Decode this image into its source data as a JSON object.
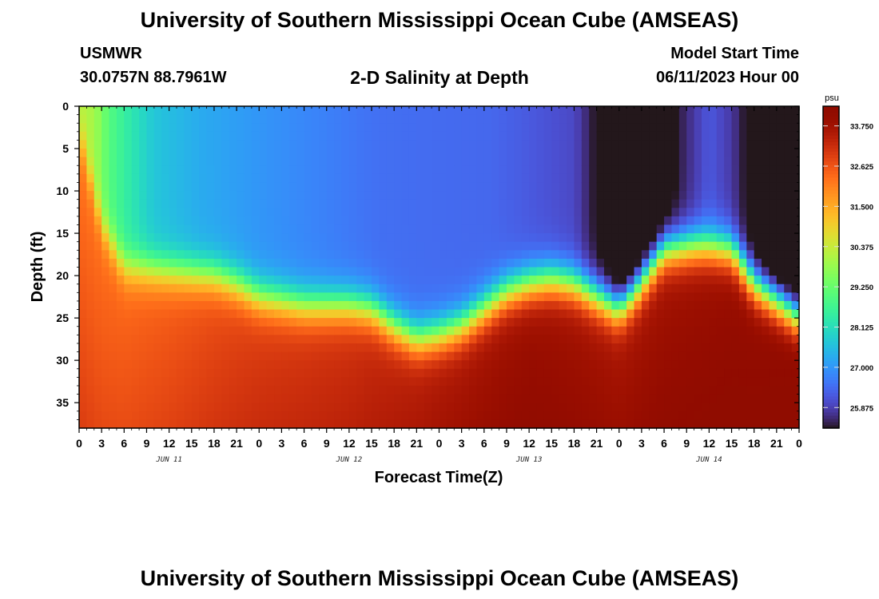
{
  "header": {
    "title": "University of Southern Mississippi Ocean Cube (AMSEAS)",
    "station": "USMWR",
    "coordinates": "30.0757N  88.7961W",
    "subtitle": "2-D Salinity at Depth",
    "start_label": "Model Start Time",
    "start_value": "06/11/2023 Hour 00"
  },
  "footer": {
    "title": "University of Southern Mississippi Ocean Cube (AMSEAS)"
  },
  "chart_data": {
    "type": "heatmap",
    "title": "2-D Salinity at Depth",
    "xlabel": "Forecast Time(Z)",
    "ylabel": "Depth (ft)",
    "x_tick_labels": [
      "0",
      "3",
      "6",
      "9",
      "12",
      "15",
      "18",
      "21",
      "0",
      "3",
      "6",
      "9",
      "12",
      "15",
      "18",
      "21",
      "0",
      "3",
      "6",
      "9",
      "12",
      "15",
      "18",
      "21",
      "0",
      "3",
      "6",
      "9",
      "12",
      "15",
      "18",
      "21",
      "0"
    ],
    "x_day_labels": [
      {
        "label": "JUN 11",
        "hour": 12
      },
      {
        "label": "JUN 12",
        "hour": 36
      },
      {
        "label": "JUN 13",
        "hour": 60
      },
      {
        "label": "JUN 14",
        "hour": 84
      }
    ],
    "xlim_hours": [
      0,
      96
    ],
    "ylim_depth_ft": [
      0,
      38
    ],
    "y_inverted": true,
    "y_ticks": [
      0,
      5,
      10,
      15,
      20,
      25,
      30,
      35
    ],
    "colorbar": {
      "unit": "psu",
      "range": [
        25.3,
        34.3
      ],
      "tick_values": [
        33.75,
        32.625,
        31.5,
        30.375,
        29.25,
        28.125,
        27.0,
        25.875
      ],
      "tick_labels": [
        "33.750",
        "32.625",
        "31.500",
        "30.375",
        "29.250",
        "28.125",
        "27.000",
        "25.875"
      ],
      "colormap": "turbo"
    },
    "halocline_depth_ft": {
      "hours": [
        0,
        3,
        6,
        12,
        18,
        21,
        24,
        30,
        36,
        39,
        42,
        45,
        48,
        51,
        54,
        57,
        60,
        63,
        66,
        69,
        72,
        74,
        78,
        82,
        84,
        87,
        90,
        93,
        96
      ],
      "values": [
        3,
        14,
        19,
        19.5,
        20,
        21,
        22.5,
        23.5,
        23.5,
        24,
        26,
        27.5,
        27,
        26,
        24,
        22,
        21,
        20.5,
        21,
        22.5,
        24,
        22,
        17,
        16.5,
        16.5,
        17,
        21,
        23,
        25
      ]
    },
    "surface_salinity_psu": {
      "hours": [
        0,
        2,
        4,
        7,
        10,
        16,
        24,
        40,
        55,
        66,
        70,
        73,
        77,
        80,
        84,
        87,
        92,
        96
      ],
      "values": [
        30.2,
        30.0,
        29.0,
        28.3,
        27.7,
        27.3,
        27.0,
        26.5,
        26.4,
        26.0,
        25.0,
        24.3,
        24.6,
        25.4,
        26.2,
        25.8,
        24.4,
        24.2
      ]
    },
    "bottom_salinity_psu": {
      "hours": [
        0,
        12,
        24,
        36,
        48,
        60,
        72,
        84,
        96
      ],
      "values": [
        32.2,
        32.5,
        32.9,
        33.1,
        33.5,
        33.8,
        33.6,
        33.8,
        34.1
      ]
    }
  }
}
